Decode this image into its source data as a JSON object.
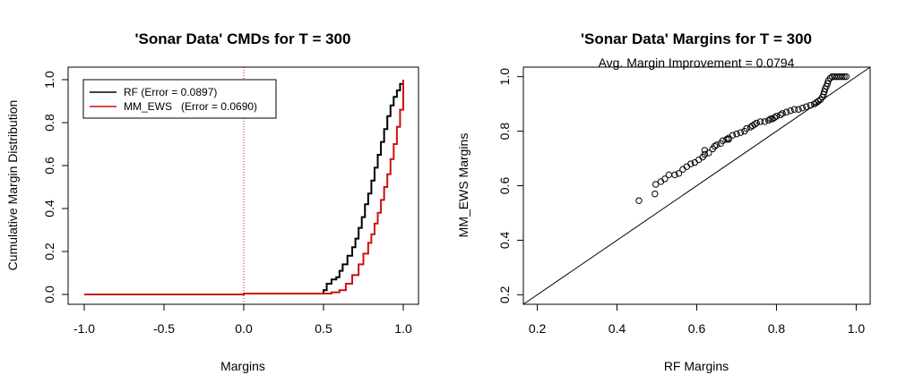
{
  "chart_data": [
    {
      "type": "line",
      "title": "'Sonar Data' CMDs for T = 300",
      "xlabel": "Margins",
      "ylabel": "Cumulative Margin Distribution",
      "xlim": [
        -1.0,
        1.0
      ],
      "ylim": [
        0.0,
        1.0
      ],
      "x_ticks": [
        "-1.0",
        "-0.5",
        "0.0",
        "0.5",
        "1.0"
      ],
      "y_ticks": [
        "0.0",
        "0.2",
        "0.4",
        "0.6",
        "0.8",
        "1.0"
      ],
      "x_tick_values": [
        -1.0,
        -0.5,
        0.0,
        0.5,
        1.0
      ],
      "y_tick_values": [
        0.0,
        0.2,
        0.4,
        0.6,
        0.8,
        1.0
      ],
      "vline": {
        "x": 0.0,
        "color": "#b22222",
        "style": "dotted"
      },
      "legend": {
        "position": "top-left",
        "entries": [
          {
            "label": "RF (Error = 0.0897)",
            "color": "#000000"
          },
          {
            "label": "MM_EWS   (Error = 0.0690)",
            "color": "#cc1111"
          }
        ]
      },
      "series": [
        {
          "color": "#000000",
          "points": [
            [
              -1.0,
              0.0
            ],
            [
              -0.25,
              0.0
            ],
            [
              0.0,
              0.004
            ],
            [
              0.48,
              0.004
            ],
            [
              0.5,
              0.02
            ],
            [
              0.52,
              0.05
            ],
            [
              0.55,
              0.07
            ],
            [
              0.58,
              0.08
            ],
            [
              0.6,
              0.11
            ],
            [
              0.62,
              0.14
            ],
            [
              0.65,
              0.18
            ],
            [
              0.68,
              0.22
            ],
            [
              0.7,
              0.26
            ],
            [
              0.72,
              0.31
            ],
            [
              0.74,
              0.36
            ],
            [
              0.76,
              0.42
            ],
            [
              0.78,
              0.47
            ],
            [
              0.8,
              0.53
            ],
            [
              0.82,
              0.59
            ],
            [
              0.84,
              0.65
            ],
            [
              0.86,
              0.71
            ],
            [
              0.88,
              0.77
            ],
            [
              0.9,
              0.83
            ],
            [
              0.92,
              0.88
            ],
            [
              0.94,
              0.92
            ],
            [
              0.96,
              0.95
            ],
            [
              0.98,
              0.98
            ],
            [
              1.0,
              1.0
            ]
          ]
        },
        {
          "color": "#cc1111",
          "points": [
            [
              -1.0,
              0.0
            ],
            [
              0.0,
              0.004
            ],
            [
              0.5,
              0.004
            ],
            [
              0.55,
              0.01
            ],
            [
              0.6,
              0.02
            ],
            [
              0.64,
              0.05
            ],
            [
              0.68,
              0.09
            ],
            [
              0.72,
              0.14
            ],
            [
              0.75,
              0.19
            ],
            [
              0.78,
              0.24
            ],
            [
              0.8,
              0.28
            ],
            [
              0.82,
              0.33
            ],
            [
              0.84,
              0.38
            ],
            [
              0.86,
              0.44
            ],
            [
              0.88,
              0.5
            ],
            [
              0.9,
              0.56
            ],
            [
              0.92,
              0.63
            ],
            [
              0.94,
              0.7
            ],
            [
              0.96,
              0.78
            ],
            [
              0.98,
              0.86
            ],
            [
              1.0,
              0.9
            ],
            [
              1.0,
              1.0
            ]
          ]
        }
      ]
    },
    {
      "type": "scatter",
      "title": "'Sonar Data' Margins for T = 300",
      "subtitle": "Avg. Margin Improvement = 0.0794",
      "xlabel": "RF Margins",
      "ylabel": "MM_EWS Margins",
      "xlim": [
        0.165,
        1.035
      ],
      "ylim": [
        0.165,
        1.035
      ],
      "x_ticks": [
        "0.2",
        "0.4",
        "0.6",
        "0.8",
        "1.0"
      ],
      "y_ticks": [
        "0.2",
        "0.4",
        "0.6",
        "0.8",
        "1.0"
      ],
      "x_tick_values": [
        0.2,
        0.4,
        0.6,
        0.8,
        1.0
      ],
      "y_tick_values": [
        0.2,
        0.4,
        0.6,
        0.8,
        1.0
      ],
      "reference_line": {
        "slope": 1,
        "intercept": 0
      },
      "points": [
        [
          0.455,
          0.545
        ],
        [
          0.495,
          0.57
        ],
        [
          0.497,
          0.605
        ],
        [
          0.51,
          0.615
        ],
        [
          0.52,
          0.625
        ],
        [
          0.53,
          0.64
        ],
        [
          0.545,
          0.64
        ],
        [
          0.555,
          0.645
        ],
        [
          0.565,
          0.66
        ],
        [
          0.575,
          0.67
        ],
        [
          0.585,
          0.68
        ],
        [
          0.595,
          0.685
        ],
        [
          0.605,
          0.695
        ],
        [
          0.615,
          0.705
        ],
        [
          0.62,
          0.715
        ],
        [
          0.63,
          0.72
        ],
        [
          0.64,
          0.735
        ],
        [
          0.645,
          0.745
        ],
        [
          0.65,
          0.75
        ],
        [
          0.66,
          0.755
        ],
        [
          0.665,
          0.765
        ],
        [
          0.675,
          0.77
        ],
        [
          0.68,
          0.775
        ],
        [
          0.69,
          0.785
        ],
        [
          0.7,
          0.79
        ],
        [
          0.71,
          0.795
        ],
        [
          0.72,
          0.8
        ],
        [
          0.725,
          0.81
        ],
        [
          0.735,
          0.815
        ],
        [
          0.745,
          0.825
        ],
        [
          0.75,
          0.83
        ],
        [
          0.76,
          0.835
        ],
        [
          0.77,
          0.835
        ],
        [
          0.78,
          0.84
        ],
        [
          0.785,
          0.845
        ],
        [
          0.795,
          0.85
        ],
        [
          0.8,
          0.855
        ],
        [
          0.81,
          0.86
        ],
        [
          0.815,
          0.865
        ],
        [
          0.825,
          0.87
        ],
        [
          0.835,
          0.875
        ],
        [
          0.845,
          0.88
        ],
        [
          0.855,
          0.88
        ],
        [
          0.865,
          0.885
        ],
        [
          0.875,
          0.89
        ],
        [
          0.885,
          0.895
        ],
        [
          0.895,
          0.9
        ],
        [
          0.9,
          0.905
        ],
        [
          0.905,
          0.91
        ],
        [
          0.91,
          0.915
        ],
        [
          0.915,
          0.925
        ],
        [
          0.918,
          0.935
        ],
        [
          0.92,
          0.945
        ],
        [
          0.922,
          0.955
        ],
        [
          0.925,
          0.965
        ],
        [
          0.928,
          0.975
        ],
        [
          0.93,
          0.985
        ],
        [
          0.935,
          0.995
        ],
        [
          0.94,
          1.0
        ],
        [
          0.945,
          1.0
        ],
        [
          0.95,
          1.0
        ],
        [
          0.955,
          1.0
        ],
        [
          0.96,
          1.0
        ],
        [
          0.965,
          1.0
        ],
        [
          0.97,
          1.0
        ],
        [
          0.975,
          1.0
        ],
        [
          0.62,
          0.73
        ],
        [
          0.68,
          0.77
        ],
        [
          0.74,
          0.82
        ],
        [
          0.79,
          0.845
        ]
      ]
    }
  ]
}
